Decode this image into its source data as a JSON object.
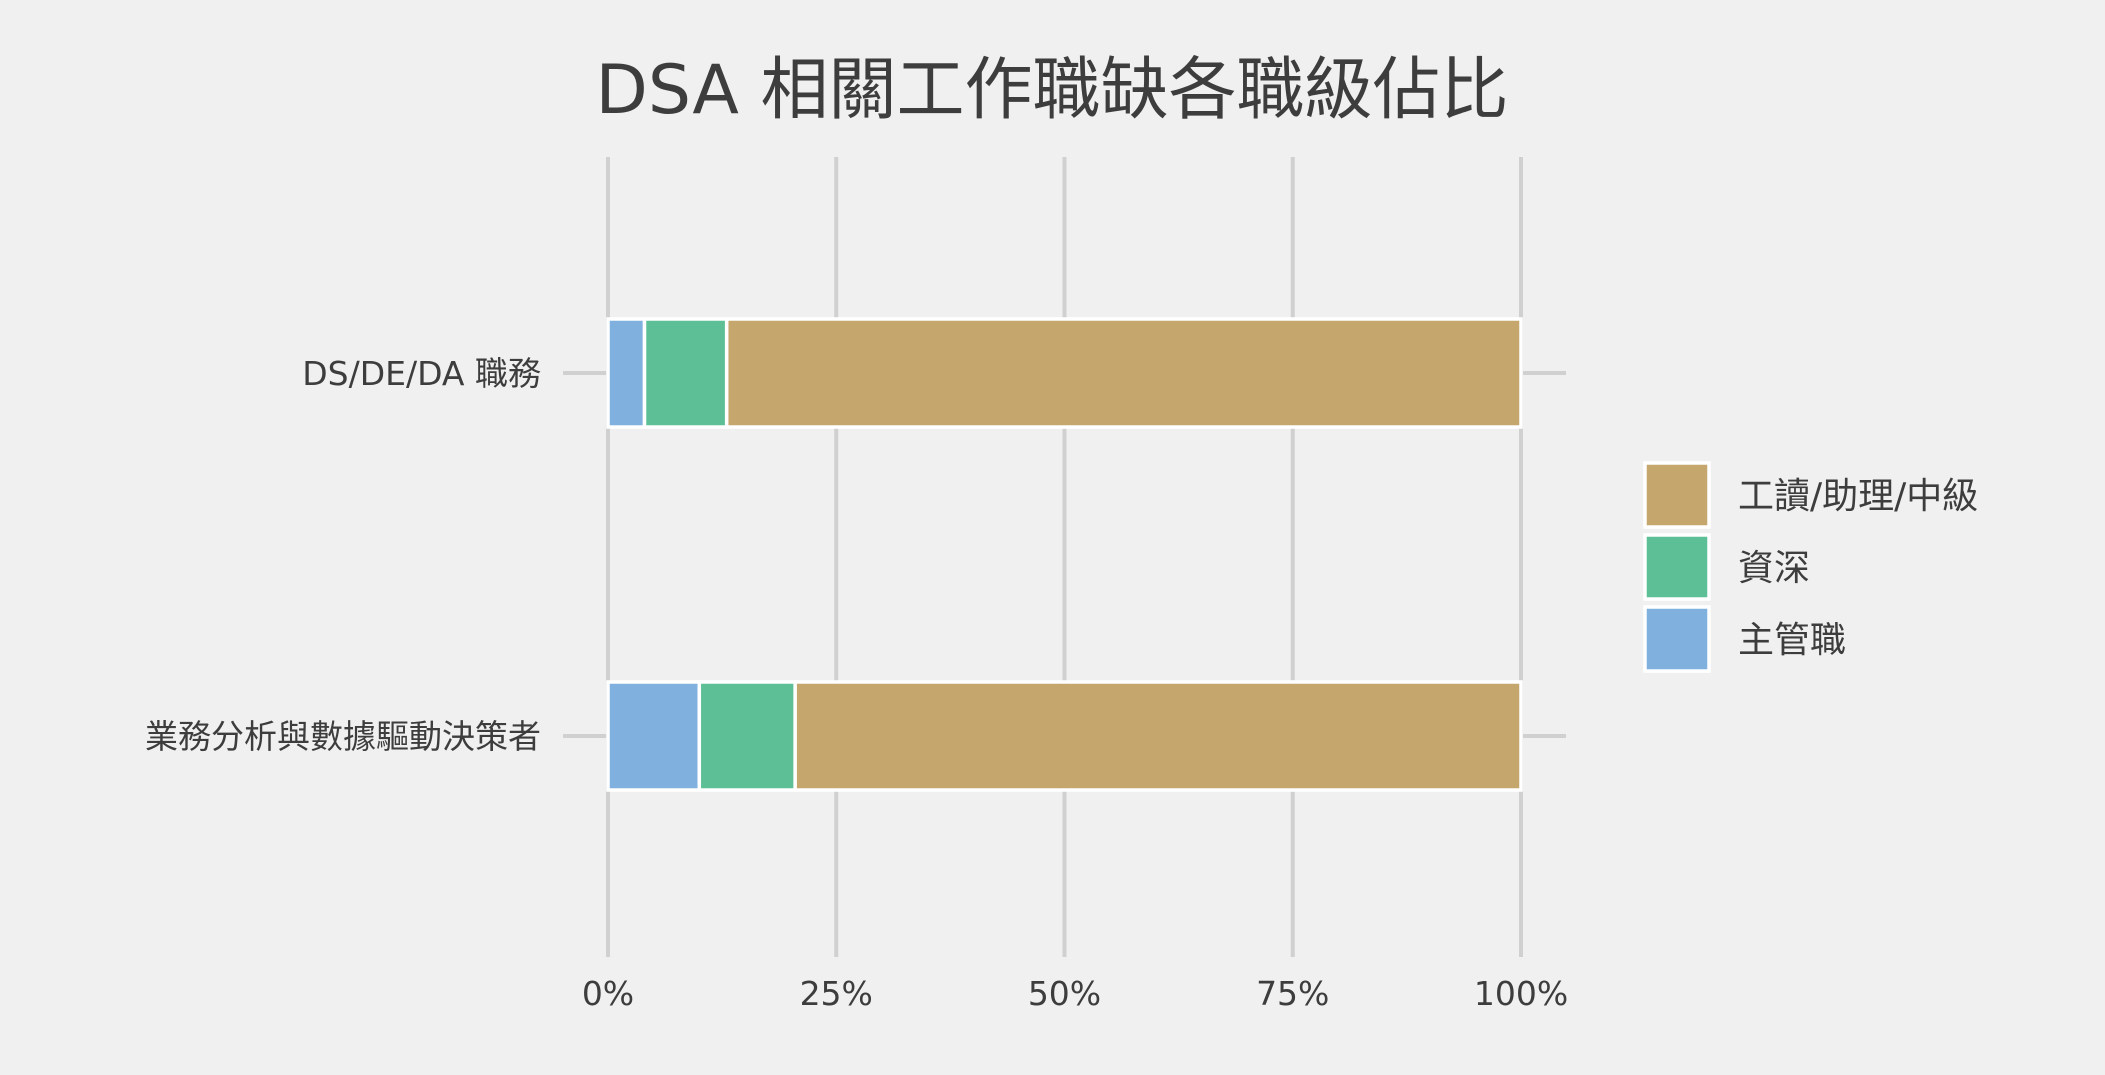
{
  "chart_data": {
    "type": "bar",
    "orientation": "horizontal",
    "stacked": true,
    "normalized": true,
    "title": "DSA 相關工作職缺各職級佔比",
    "xlabel": "",
    "ylabel": "",
    "categories": [
      "DS/DE/DA 職務",
      "業務分析與數據驅動決策者"
    ],
    "series": [
      {
        "name": "主管職",
        "values": [
          0.04,
          0.1
        ],
        "color": "#7fb0de"
      },
      {
        "name": "資深",
        "values": [
          0.09,
          0.105
        ],
        "color": "#5cbf95"
      },
      {
        "name": "工讀/助理/中級",
        "values": [
          0.87,
          0.795
        ],
        "color": "#c5a66d"
      }
    ],
    "xlim": [
      0,
      1
    ],
    "x_ticks": [
      0,
      0.25,
      0.5,
      0.75,
      1.0
    ],
    "x_tick_labels": [
      "0%",
      "25%",
      "50%",
      "75%",
      "100%"
    ],
    "legend": {
      "position": "right",
      "order": [
        "工讀/助理/中級",
        "資深",
        "主管職"
      ]
    },
    "grid": {
      "vertical": true,
      "horizontal": true
    },
    "colors": {
      "background": "#f0f0f0",
      "grid": "#d0d0d0",
      "text": "#3d3d3d",
      "bar_outline": "#ffffff"
    }
  }
}
